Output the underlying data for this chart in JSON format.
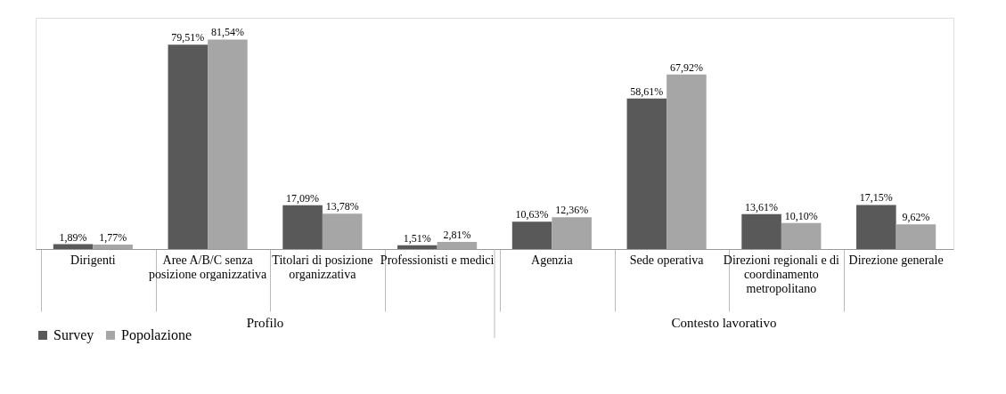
{
  "chart_data": {
    "type": "bar",
    "categories": [
      "Dirigenti",
      "Aree A/B/C senza posizione organizzativa",
      "Titolari di posizione organizzativa",
      "Professionisti e medici",
      "Agenzia",
      "Sede operativa",
      "Direzioni regionali e di coordinamento metropolitano",
      "Direzione generale"
    ],
    "series": [
      {
        "name": "Survey",
        "color": "#595959",
        "values": [
          1.89,
          79.51,
          17.09,
          1.51,
          10.63,
          58.61,
          13.61,
          17.15
        ],
        "value_labels": [
          "1,89%",
          "79,51%",
          "17,09%",
          "1,51%",
          "10,63%",
          "58,61%",
          "13,61%",
          "17,15%"
        ]
      },
      {
        "name": "Popolazione",
        "color": "#a6a6a6",
        "values": [
          1.77,
          81.54,
          13.78,
          2.81,
          12.36,
          67.92,
          10.1,
          9.62
        ],
        "value_labels": [
          "1,77%",
          "81,54%",
          "13,78%",
          "2,81%",
          "12,36%",
          "67,92%",
          "10,10%",
          "9,62%"
        ]
      }
    ],
    "annotations": [
      "Profilo",
      "Contesto lavorativo"
    ],
    "legend": "bottom",
    "grid": false
  }
}
